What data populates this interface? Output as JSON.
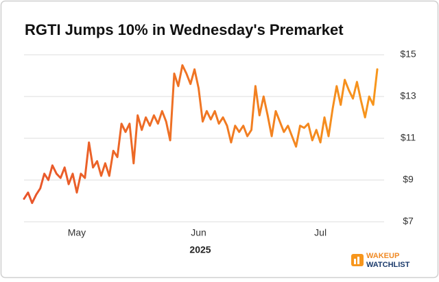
{
  "chart_data": {
    "type": "line",
    "title": "RGTI Jumps 10% in Wednesday's Premarket",
    "x_axis_label": "2025",
    "categories": [
      null,
      null,
      null,
      null,
      null,
      null,
      null,
      null,
      null,
      null,
      null,
      null,
      null,
      "May",
      null,
      null,
      null,
      null,
      null,
      null,
      null,
      null,
      null,
      null,
      null,
      null,
      null,
      null,
      null,
      null,
      null,
      null,
      null,
      null,
      null,
      null,
      null,
      null,
      null,
      null,
      null,
      null,
      null,
      "Jun",
      null,
      null,
      null,
      null,
      null,
      null,
      null,
      null,
      null,
      null,
      null,
      null,
      null,
      null,
      null,
      null,
      null,
      null,
      null,
      null,
      null,
      null,
      null,
      null,
      null,
      null,
      null,
      null,
      null,
      "Jul",
      null,
      null,
      null,
      null,
      null,
      null,
      null,
      null,
      null,
      null,
      null,
      null,
      null,
      null
    ],
    "series": [
      {
        "name": "RGTI",
        "color": "#f08a24",
        "gradient": [
          "#e8552b",
          "#f7961c"
        ],
        "values": [
          8.1,
          8.4,
          7.9,
          8.3,
          8.6,
          9.3,
          9.0,
          9.7,
          9.3,
          9.1,
          9.6,
          8.8,
          9.3,
          8.4,
          9.3,
          9.1,
          10.8,
          9.6,
          9.9,
          9.2,
          9.8,
          9.2,
          10.4,
          10.1,
          11.7,
          11.3,
          11.7,
          9.8,
          12.1,
          11.4,
          12.0,
          11.6,
          12.1,
          11.7,
          12.3,
          11.8,
          10.9,
          14.1,
          13.5,
          14.5,
          14.1,
          13.6,
          14.3,
          13.4,
          11.8,
          12.3,
          11.9,
          12.3,
          11.7,
          12.0,
          11.6,
          10.8,
          11.6,
          11.3,
          11.6,
          11.1,
          11.4,
          13.5,
          12.1,
          13.0,
          12.1,
          11.1,
          12.3,
          11.8,
          11.3,
          11.6,
          11.1,
          10.6,
          11.6,
          11.5,
          11.7,
          10.9,
          11.4,
          10.8,
          12.0,
          11.1,
          12.4,
          13.5,
          12.6,
          13.8,
          13.3,
          12.9,
          13.7,
          12.8,
          12.0,
          13.0,
          12.6,
          14.3
        ]
      }
    ],
    "ylim": [
      7,
      15
    ],
    "yticks": [
      {
        "value": 7,
        "label": "$7"
      },
      {
        "value": 9,
        "label": "$9"
      },
      {
        "value": 11,
        "label": "$11"
      },
      {
        "value": 13,
        "label": "$13"
      },
      {
        "value": 15,
        "label": "$15"
      }
    ],
    "y_axis_side": "right",
    "grid": true,
    "logo": {
      "line1": "WAKEUP",
      "line2": "WATCHLIST"
    }
  }
}
